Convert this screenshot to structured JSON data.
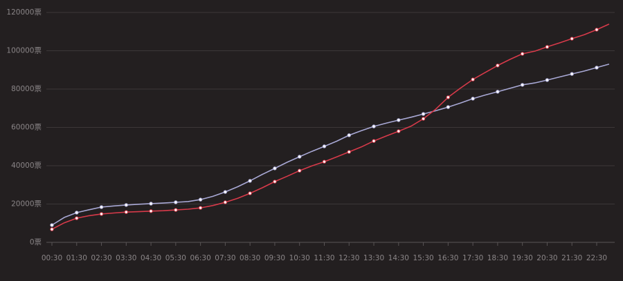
{
  "chart_data": {
    "type": "line",
    "categories": [
      "00:30",
      null,
      "01:30",
      null,
      "02:30",
      null,
      "03:30",
      null,
      "04:30",
      null,
      "05:30",
      null,
      "06:30",
      null,
      "07:30",
      null,
      "08:30",
      null,
      "09:30",
      null,
      "10:30",
      null,
      "11:30",
      null,
      "12:30",
      null,
      "13:30",
      null,
      "14:30",
      null,
      "15:30",
      null,
      "16:30",
      null,
      "17:30",
      null,
      "18:30",
      null,
      "19:30",
      null,
      "20:30",
      null,
      "21:30",
      null,
      "22:30",
      null
    ],
    "series": [
      {
        "color": "#a9a9d6",
        "values": [
          9000,
          13000,
          15500,
          17000,
          18400,
          19000,
          19500,
          19900,
          20200,
          20500,
          20900,
          21300,
          22300,
          24000,
          26300,
          29000,
          32100,
          35500,
          38600,
          41800,
          44700,
          47500,
          50100,
          52800,
          55900,
          58300,
          60500,
          62200,
          63800,
          65300,
          67000,
          68700,
          70600,
          72700,
          75000,
          76900,
          78600,
          80400,
          82200,
          83200,
          84700,
          86300,
          87900,
          89400,
          91200,
          93000
        ]
      },
      {
        "color": "#d83a4a",
        "values": [
          6800,
          10200,
          12600,
          13900,
          14800,
          15300,
          15800,
          16000,
          16300,
          16500,
          16900,
          17300,
          18000,
          19200,
          20900,
          23000,
          25600,
          28500,
          31700,
          34500,
          37400,
          39900,
          42100,
          44600,
          47200,
          49800,
          52900,
          55500,
          58000,
          60600,
          64500,
          69500,
          75700,
          80500,
          85000,
          88700,
          92300,
          95500,
          98400,
          99800,
          102000,
          104100,
          106300,
          108400,
          111000,
          113900
        ]
      }
    ],
    "ylim": [
      0,
      120000
    ],
    "yticks": [
      {
        "value": 0,
        "label": "0票"
      },
      {
        "value": 20000,
        "label": "20000票"
      },
      {
        "value": 40000,
        "label": "40000票"
      },
      {
        "value": 60000,
        "label": "60000票"
      },
      {
        "value": 80000,
        "label": "80000票"
      },
      {
        "value": 100000,
        "label": "100000票"
      },
      {
        "value": 120000,
        "label": "120000票"
      }
    ],
    "grid": true
  }
}
